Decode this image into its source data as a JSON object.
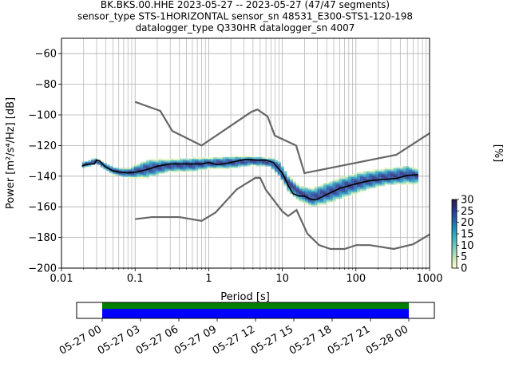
{
  "title": {
    "line1": "BK.BKS.00.HHE   2023-05-27 -- 2023-05-27  (47/47 segments)",
    "line2": "sensor_type STS-1HORIZONTAL sensor_sn 48531_E300-STS1-120-198",
    "line3": "datalogger_type Q330HR datalogger_sn 4007"
  },
  "colors": {
    "model": "#666666",
    "mean": "#000000",
    "grid": "#b0b0b0",
    "coverage_top": "#008000",
    "coverage_bottom": "#0000ff"
  },
  "chart_data": [
    {
      "type": "heatmap",
      "xlabel": "Period [s]",
      "ylabel": "Power [m²/s⁴/Hz] [dB]",
      "x_scale": "log",
      "xlim": [
        0.01,
        1000
      ],
      "ylim": [
        -200,
        -50
      ],
      "x_ticks": [
        {
          "value": 0.01,
          "label": "0.01"
        },
        {
          "value": 0.1,
          "label": "0.1"
        },
        {
          "value": 1,
          "label": "1"
        },
        {
          "value": 10,
          "label": "10"
        },
        {
          "value": 100,
          "label": "100"
        },
        {
          "value": 1000,
          "label": "1000"
        }
      ],
      "y_ticks": [
        {
          "value": -60,
          "label": "−60"
        },
        {
          "value": -80,
          "label": "−80"
        },
        {
          "value": -100,
          "label": "−100"
        },
        {
          "value": -120,
          "label": "−120"
        },
        {
          "value": -140,
          "label": "−140"
        },
        {
          "value": -160,
          "label": "−160"
        },
        {
          "value": -180,
          "label": "−180"
        },
        {
          "value": -200,
          "label": "−200"
        }
      ],
      "grid": true,
      "high_noise_model": [
        [
          0.1,
          -91.5
        ],
        [
          0.22,
          -97.4
        ],
        [
          0.32,
          -110.5
        ],
        [
          0.8,
          -120
        ],
        [
          3.8,
          -98
        ],
        [
          4.6,
          -96.5
        ],
        [
          6.3,
          -101
        ],
        [
          7.9,
          -113.5
        ],
        [
          15.4,
          -120
        ],
        [
          20,
          -138
        ],
        [
          354.8,
          -126
        ],
        [
          1000,
          -112
        ]
      ],
      "low_noise_model": [
        [
          0.1,
          -168
        ],
        [
          0.17,
          -166.7
        ],
        [
          0.4,
          -166.7
        ],
        [
          0.8,
          -169.2
        ],
        [
          1.24,
          -163.7
        ],
        [
          2.4,
          -148.6
        ],
        [
          4.3,
          -141.1
        ],
        [
          5.0,
          -141.1
        ],
        [
          6.0,
          -149
        ],
        [
          10,
          -163
        ],
        [
          12,
          -166
        ],
        [
          15.6,
          -162.1
        ],
        [
          21.9,
          -177.5
        ],
        [
          31.6,
          -185
        ],
        [
          45,
          -187.5
        ],
        [
          70,
          -187.5
        ],
        [
          101,
          -185
        ],
        [
          154,
          -185
        ],
        [
          328,
          -187.5
        ],
        [
          600,
          -184.4
        ],
        [
          1000,
          -178
        ]
      ],
      "mean_psd": [
        [
          0.019,
          -133.5
        ],
        [
          0.021,
          -132.5
        ],
        [
          0.025,
          -132
        ],
        [
          0.028,
          -132
        ],
        [
          0.03,
          -129.5
        ],
        [
          0.033,
          -130
        ],
        [
          0.036,
          -132
        ],
        [
          0.04,
          -134
        ],
        [
          0.05,
          -136.5
        ],
        [
          0.065,
          -137.5
        ],
        [
          0.08,
          -137.8
        ],
        [
          0.1,
          -137.5
        ],
        [
          0.15,
          -135.5
        ],
        [
          0.2,
          -133.5
        ],
        [
          0.3,
          -132
        ],
        [
          0.5,
          -132
        ],
        [
          0.8,
          -132
        ],
        [
          1.0,
          -131
        ],
        [
          1.3,
          -132.5
        ],
        [
          1.8,
          -131.5
        ],
        [
          2.5,
          -130
        ],
        [
          3.2,
          -129
        ],
        [
          4.5,
          -129.5
        ],
        [
          6.0,
          -129.5
        ],
        [
          7.5,
          -131
        ],
        [
          8.5,
          -134
        ],
        [
          10,
          -138
        ],
        [
          11,
          -142
        ],
        [
          12,
          -146
        ],
        [
          14,
          -151.5
        ],
        [
          17,
          -153
        ],
        [
          20,
          -153
        ],
        [
          24,
          -155
        ],
        [
          28,
          -155.5
        ],
        [
          33,
          -154
        ],
        [
          40,
          -152
        ],
        [
          60,
          -148
        ],
        [
          100,
          -145
        ],
        [
          150,
          -143
        ],
        [
          250,
          -142
        ],
        [
          350,
          -141.5
        ],
        [
          500,
          -139.5
        ],
        [
          700,
          -139
        ]
      ],
      "psd_band": [
        [
          0.019,
          -131,
          -135
        ],
        [
          0.03,
          -128,
          -132
        ],
        [
          0.05,
          -134,
          -139
        ],
        [
          0.08,
          -135,
          -141
        ],
        [
          0.15,
          -129,
          -141
        ],
        [
          0.3,
          -129,
          -137
        ],
        [
          0.6,
          -128,
          -137
        ],
        [
          1.0,
          -128,
          -135
        ],
        [
          2.0,
          -127,
          -135
        ],
        [
          4.0,
          -127,
          -133
        ],
        [
          7.0,
          -128,
          -134
        ],
        [
          9.0,
          -130,
          -140
        ],
        [
          12.0,
          -139,
          -150
        ],
        [
          17.0,
          -146,
          -156
        ],
        [
          25.0,
          -148,
          -160
        ],
        [
          40.0,
          -144,
          -158
        ],
        [
          70.0,
          -140,
          -154
        ],
        [
          120.0,
          -137,
          -150
        ],
        [
          250.0,
          -135,
          -146
        ],
        [
          500.0,
          -133,
          -145
        ],
        [
          700.0,
          -135,
          -145
        ]
      ],
      "colorbar": {
        "label": "[%]",
        "min": 0,
        "max": 30,
        "ticks": [
          {
            "value": 0,
            "label": "0"
          },
          {
            "value": 5,
            "label": "5"
          },
          {
            "value": 10,
            "label": "10"
          },
          {
            "value": 15,
            "label": "15"
          },
          {
            "value": 20,
            "label": "20"
          },
          {
            "value": 25,
            "label": "25"
          },
          {
            "value": 30,
            "label": "30"
          }
        ],
        "colormap": [
          "#ffffcc",
          "#c7e9b4",
          "#7fcdbb",
          "#41b6c4",
          "#1d91c0",
          "#225ea8",
          "#253494",
          "#2e1a47"
        ]
      }
    },
    {
      "type": "timeline",
      "start_hour": -2.0,
      "end_hour": 26.0,
      "data_start_hour": 0.0,
      "data_end_hour": 24.0,
      "ticks": [
        {
          "hour": 0,
          "label": "05-27 00"
        },
        {
          "hour": 3,
          "label": "05-27 03"
        },
        {
          "hour": 6,
          "label": "05-27 06"
        },
        {
          "hour": 9,
          "label": "05-27 09"
        },
        {
          "hour": 12,
          "label": "05-27 12"
        },
        {
          "hour": 15,
          "label": "05-27 15"
        },
        {
          "hour": 18,
          "label": "05-27 18"
        },
        {
          "hour": 21,
          "label": "05-27 21"
        },
        {
          "hour": 24,
          "label": "05-28 00"
        }
      ]
    }
  ]
}
